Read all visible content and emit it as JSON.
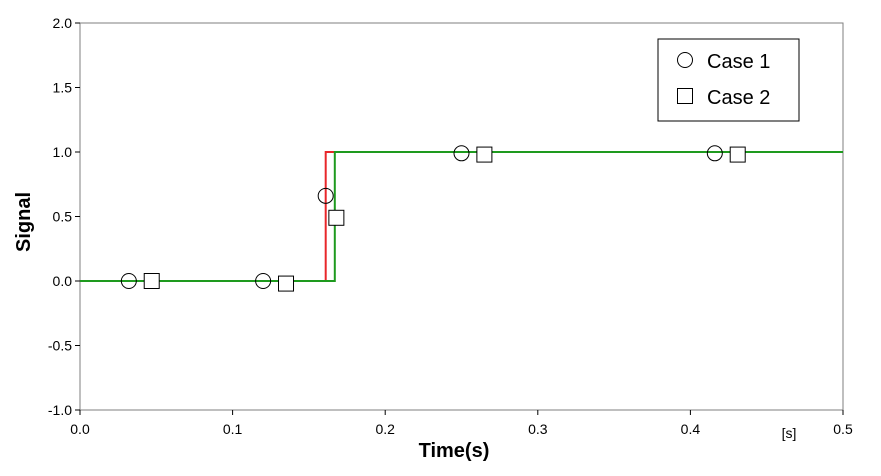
{
  "chart_data": {
    "type": "line",
    "title": "",
    "xlabel": "Time(s)",
    "ylabel": "Signal",
    "x_unit_label": "[s]",
    "xlim": [
      0.0,
      0.5
    ],
    "ylim": [
      -1.0,
      2.0
    ],
    "x_ticks": [
      0.0,
      0.1,
      0.2,
      0.3,
      0.4,
      0.5
    ],
    "x_tick_labels": [
      "0.0",
      "0.1",
      "0.2",
      "0.3",
      "0.4",
      "0.5"
    ],
    "y_ticks": [
      -1.0,
      -0.5,
      0.0,
      0.5,
      1.0,
      1.5,
      2.0
    ],
    "y_tick_labels": [
      "-1.0",
      "-0.5",
      "0.0",
      "0.5",
      "1.0",
      "1.5",
      "2.0"
    ],
    "grid": false,
    "legend_position": "top-right",
    "series": [
      {
        "name": "Case 1",
        "color": "#e8262a",
        "marker": "circle",
        "x": [
          0.0,
          0.161,
          0.161,
          0.5
        ],
        "y": [
          0.0,
          0.0,
          1.0,
          1.0
        ],
        "markers": {
          "x": [
            0.032,
            0.12,
            0.161,
            0.25,
            0.416
          ],
          "y": [
            0.0,
            0.0,
            0.66,
            0.99,
            0.99
          ]
        }
      },
      {
        "name": "Case 2",
        "color": "#1e9a1e",
        "marker": "square",
        "x": [
          0.0,
          0.167,
          0.167,
          0.5
        ],
        "y": [
          0.0,
          0.0,
          1.0,
          1.0
        ],
        "markers": {
          "x": [
            0.047,
            0.135,
            0.168,
            0.265,
            0.431
          ],
          "y": [
            0.0,
            -0.02,
            0.49,
            0.98,
            0.98
          ]
        }
      }
    ]
  }
}
